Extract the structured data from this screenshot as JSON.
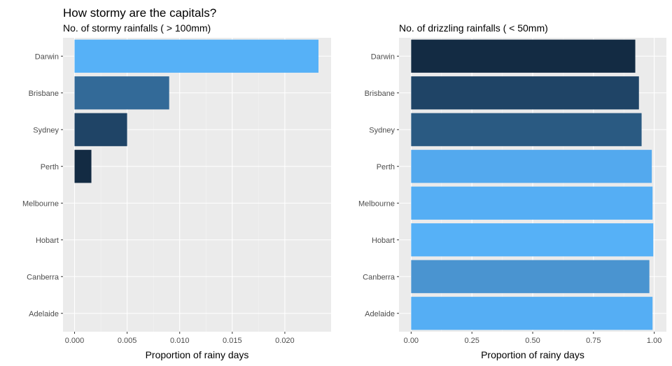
{
  "title": "How stormy are the capitals?",
  "chart_data": [
    {
      "type": "bar",
      "orientation": "horizontal",
      "subtitle": "No. of stormy rainfalls ( > 100mm)",
      "xlabel": "Proportion of rainy days",
      "ylabel": "",
      "categories": [
        "Darwin",
        "Brisbane",
        "Sydney",
        "Perth",
        "Melbourne",
        "Hobart",
        "Canberra",
        "Adelaide"
      ],
      "values": [
        0.0232,
        0.009,
        0.005,
        0.0016,
        0,
        0,
        0,
        0
      ],
      "colors": [
        "#56b1f7",
        "#336a98",
        "#1f4466",
        "#132b43",
        "#132b43",
        "#132b43",
        "#132b43",
        "#132b43"
      ],
      "xlim": [
        -0.0011,
        0.0244
      ],
      "xticks": [
        0,
        0.005,
        0.01,
        0.015,
        0.02
      ],
      "xtick_labels": [
        "0.000",
        "0.005",
        "0.010",
        "0.015",
        "0.020"
      ],
      "grid": true
    },
    {
      "type": "bar",
      "orientation": "horizontal",
      "subtitle": "No. of drizzling rainfalls ( < 50mm)",
      "xlabel": "Proportion of rainy days",
      "ylabel": "",
      "categories": [
        "Darwin",
        "Brisbane",
        "Sydney",
        "Perth",
        "Melbourne",
        "Hobart",
        "Canberra",
        "Adelaide"
      ],
      "values": [
        0.922,
        0.937,
        0.948,
        0.99,
        0.993,
        0.996,
        0.98,
        0.993
      ],
      "colors": [
        "#132b43",
        "#1f4466",
        "#2a5a82",
        "#53a9ee",
        "#55aef4",
        "#56b1f7",
        "#4a94d0",
        "#55aef4"
      ],
      "xlim": [
        -0.05,
        1.05
      ],
      "xticks": [
        0,
        0.25,
        0.5,
        0.75,
        1
      ],
      "xtick_labels": [
        "0.00",
        "0.25",
        "0.50",
        "0.75",
        "1.00"
      ],
      "grid": true
    }
  ]
}
